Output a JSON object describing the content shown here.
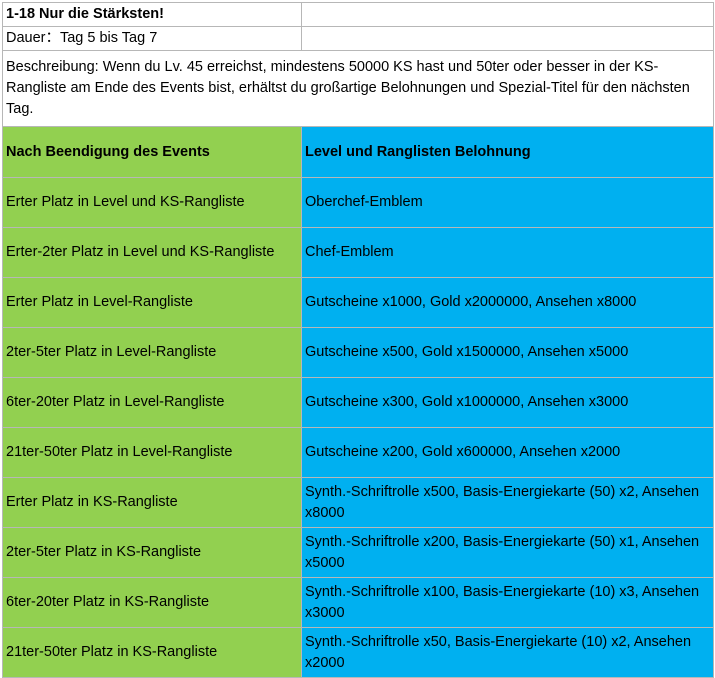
{
  "header": {
    "title": "1-18 Nur die Stärksten!",
    "duration": "Dauer：Tag 5 bis Tag 7",
    "description": "Beschreibung: Wenn du Lv. 45 erreichst, mindestens 50000 KS hast und 50ter oder besser in der KS-Rangliste am Ende des Events bist, erhältst du großartige Belohnungen und Spezial-Titel für den nächsten Tag."
  },
  "table": {
    "columns": [
      "Nach Beendigung des Events",
      "Level und Ranglisten Belohnung"
    ],
    "rows": [
      [
        "Erter Platz in Level und KS-Rangliste",
        "Oberchef-Emblem"
      ],
      [
        "Erter-2ter Platz in Level und KS-Rangliste",
        "Chef-Emblem"
      ],
      [
        "Erter Platz in Level-Rangliste",
        "Gutscheine x1000, Gold x2000000, Ansehen x8000"
      ],
      [
        "2ter-5ter Platz in Level-Rangliste",
        "Gutscheine x500, Gold x1500000, Ansehen x5000"
      ],
      [
        "6ter-20ter Platz in Level-Rangliste",
        "Gutscheine x300, Gold x1000000, Ansehen x3000"
      ],
      [
        "21ter-50ter Platz in Level-Rangliste",
        "Gutscheine x200, Gold x600000, Ansehen x2000"
      ],
      [
        "Erter Platz in KS-Rangliste",
        "Synth.-Schriftrolle x500, Basis-Energiekarte (50) x2, Ansehen x8000"
      ],
      [
        "2ter-5ter Platz in KS-Rangliste",
        "Synth.-Schriftrolle x200, Basis-Energiekarte (50) x1, Ansehen x5000"
      ],
      [
        "6ter-20ter Platz in KS-Rangliste",
        "Synth.-Schriftrolle x100, Basis-Energiekarte (10) x3, Ansehen x3000"
      ],
      [
        "21ter-50ter Platz in KS-Rangliste",
        "Synth.-Schriftrolle x50, Basis-Energiekarte (10) x2, Ansehen x2000"
      ]
    ]
  }
}
